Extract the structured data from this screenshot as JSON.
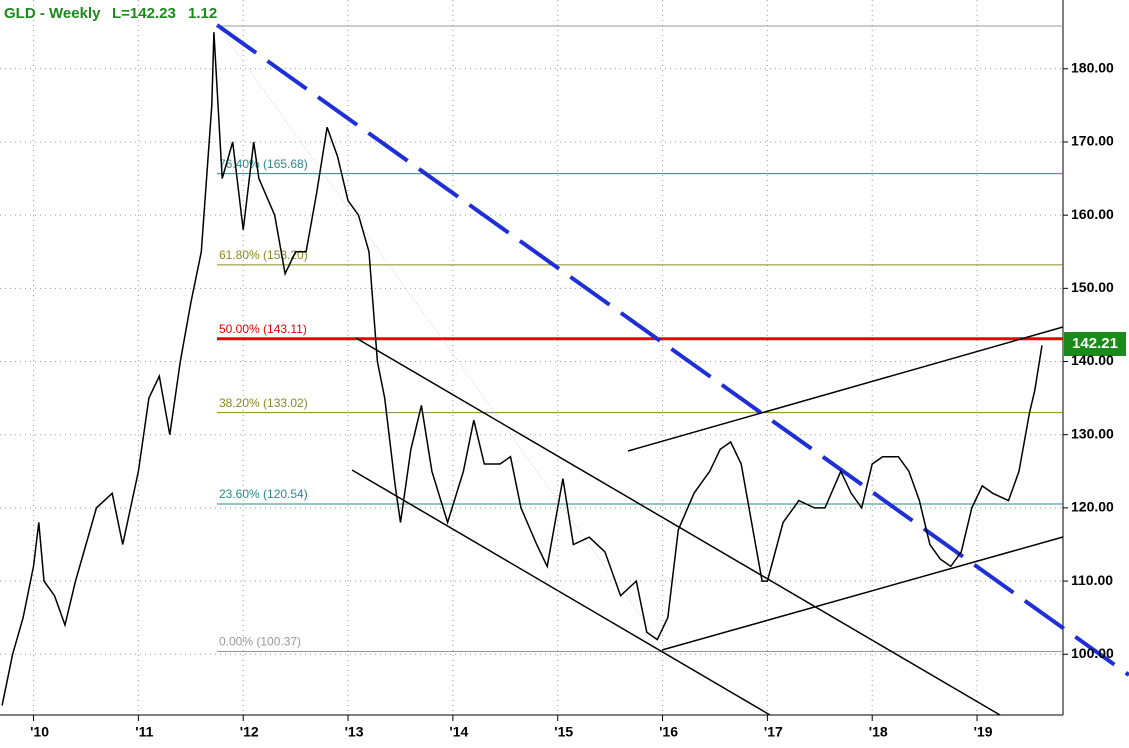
{
  "chart_data": {
    "type": "line",
    "title": "GLD - Weekly",
    "last_label": "L=142.23",
    "change_label": "1.12",
    "price_tag": "142.21",
    "color": "#000000",
    "xlim": [
      2009.68,
      2019.82
    ],
    "ylim": [
      91.7,
      189.4
    ],
    "xticks": [
      {
        "value": 2010,
        "label": "'10"
      },
      {
        "value": 2011,
        "label": "'11"
      },
      {
        "value": 2012,
        "label": "'12"
      },
      {
        "value": 2013,
        "label": "'13"
      },
      {
        "value": 2014,
        "label": "'14"
      },
      {
        "value": 2015,
        "label": "'15"
      },
      {
        "value": 2016,
        "label": "'16"
      },
      {
        "value": 2017,
        "label": "'17"
      },
      {
        "value": 2018,
        "label": "'18"
      },
      {
        "value": 2019,
        "label": "'19"
      }
    ],
    "yticks": [
      {
        "value": 100,
        "label": "100.00"
      },
      {
        "value": 110,
        "label": "110.00"
      },
      {
        "value": 120,
        "label": "120.00"
      },
      {
        "value": 130,
        "label": "130.00"
      },
      {
        "value": 140,
        "label": "140.00"
      },
      {
        "value": 150,
        "label": "150.00"
      },
      {
        "value": 160,
        "label": "160.00"
      },
      {
        "value": 170,
        "label": "170.00"
      },
      {
        "value": 180,
        "label": "180.00"
      }
    ],
    "grid": true,
    "fib_levels": [
      {
        "value": 185.85,
        "color": "#999999"
      },
      {
        "label": "76.40% (165.68)",
        "value": 165.68,
        "color": "#2a8a8a"
      },
      {
        "label": "61.80% (153.20)",
        "value": 153.2,
        "color": "#8a8a20"
      },
      {
        "label": "50.00% (143.11)",
        "value": 143.11,
        "color": "#ee0000"
      },
      {
        "label": "38.20% (133.02)",
        "value": 133.02,
        "color": "#8a8a20"
      },
      {
        "label": "23.60% (120.54)",
        "value": 120.54,
        "color": "#2a8a8a"
      },
      {
        "label": "0.00% (100.37)",
        "value": 100.37,
        "color": "#999999"
      }
    ],
    "x": [
      2009.7,
      2009.8,
      2009.9,
      2010.0,
      2010.05,
      2010.1,
      2010.2,
      2010.3,
      2010.4,
      2010.5,
      2010.6,
      2010.75,
      2010.85,
      2011.0,
      2011.1,
      2011.2,
      2011.3,
      2011.4,
      2011.5,
      2011.6,
      2011.7,
      2011.72,
      2011.8,
      2011.9,
      2012.0,
      2012.1,
      2012.15,
      2012.3,
      2012.4,
      2012.5,
      2012.6,
      2012.7,
      2012.8,
      2012.9,
      2013.0,
      2013.1,
      2013.2,
      2013.28,
      2013.35,
      2013.45,
      2013.5,
      2013.6,
      2013.7,
      2013.8,
      2013.95,
      2014.1,
      2014.2,
      2014.3,
      2014.45,
      2014.55,
      2014.65,
      2014.8,
      2014.9,
      2015.05,
      2015.15,
      2015.3,
      2015.45,
      2015.6,
      2015.75,
      2015.85,
      2015.95,
      2016.05,
      2016.15,
      2016.3,
      2016.45,
      2016.55,
      2016.65,
      2016.75,
      2016.85,
      2016.95,
      2017.0,
      2017.15,
      2017.3,
      2017.45,
      2017.55,
      2017.7,
      2017.8,
      2017.9,
      2018.0,
      2018.1,
      2018.25,
      2018.35,
      2018.45,
      2018.55,
      2018.65,
      2018.75,
      2018.85,
      2018.95,
      2019.05,
      2019.15,
      2019.3,
      2019.4,
      2019.5,
      2019.55,
      2019.62
    ],
    "values": [
      93,
      100,
      105,
      112,
      118,
      110,
      108,
      104,
      110,
      115,
      120,
      122,
      115,
      125,
      135,
      138,
      130,
      140,
      148,
      155,
      175,
      185,
      165,
      170,
      158,
      170,
      165,
      160,
      152,
      155,
      155,
      163,
      172,
      168,
      162,
      160,
      155,
      140,
      135,
      123,
      118,
      128,
      134,
      125,
      118,
      125,
      132,
      126,
      126,
      127,
      120,
      115,
      112,
      124,
      115,
      116,
      114,
      108,
      110,
      103,
      102,
      105,
      117,
      122,
      125,
      128,
      129,
      126,
      118,
      110,
      110,
      118,
      121,
      120,
      120,
      125,
      122,
      120,
      126,
      127,
      127,
      125,
      121,
      115,
      113,
      112,
      114,
      120,
      123,
      122,
      121,
      125,
      133,
      136,
      142.2
    ]
  }
}
